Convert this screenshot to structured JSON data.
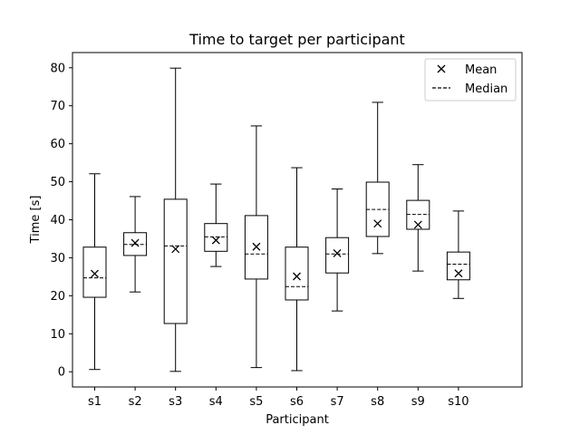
{
  "chart_data": {
    "type": "box",
    "title": "Time to target per participant",
    "xlabel": "Participant",
    "ylabel": "Time [s]",
    "ylim": [
      -4,
      84
    ],
    "yticks": [
      0,
      10,
      20,
      30,
      40,
      50,
      60,
      70,
      80
    ],
    "grid": false,
    "legend": {
      "placement": "top-right",
      "entries": [
        {
          "marker": "x",
          "label": "Mean"
        },
        {
          "marker": "dashed-line",
          "label": "Median"
        }
      ]
    },
    "categories": [
      "s1",
      "s2",
      "s3",
      "s4",
      "s5",
      "s6",
      "s7",
      "s8",
      "s9",
      "s10"
    ],
    "boxes": [
      {
        "category": "s1",
        "whisker_low": 0.6,
        "q1": 19.6,
        "median": 24.7,
        "q3": 32.8,
        "whisker_high": 52.1,
        "mean": 25.8
      },
      {
        "category": "s2",
        "whisker_low": 21.0,
        "q1": 30.6,
        "median": 33.5,
        "q3": 36.6,
        "whisker_high": 46.1,
        "mean": 33.9
      },
      {
        "category": "s3",
        "whisker_low": 0.1,
        "q1": 12.7,
        "median": 33.1,
        "q3": 45.4,
        "whisker_high": 79.9,
        "mean": 32.3
      },
      {
        "category": "s4",
        "whisker_low": 27.7,
        "q1": 31.7,
        "median": 35.5,
        "q3": 39.0,
        "whisker_high": 49.4,
        "mean": 34.6
      },
      {
        "category": "s5",
        "whisker_low": 1.1,
        "q1": 24.4,
        "median": 31.0,
        "q3": 41.1,
        "whisker_high": 64.7,
        "mean": 32.9
      },
      {
        "category": "s6",
        "whisker_low": 0.3,
        "q1": 18.9,
        "median": 22.4,
        "q3": 32.8,
        "whisker_high": 53.7,
        "mean": 25.1
      },
      {
        "category": "s7",
        "whisker_low": 16.0,
        "q1": 26.0,
        "median": 31.0,
        "q3": 35.3,
        "whisker_high": 48.1,
        "mean": 31.2
      },
      {
        "category": "s8",
        "whisker_low": 31.1,
        "q1": 35.6,
        "median": 42.7,
        "q3": 49.9,
        "whisker_high": 70.9,
        "mean": 39.0
      },
      {
        "category": "s9",
        "whisker_low": 26.5,
        "q1": 37.5,
        "median": 41.4,
        "q3": 45.1,
        "whisker_high": 54.5,
        "mean": 38.7
      },
      {
        "category": "s10",
        "whisker_low": 19.3,
        "q1": 24.2,
        "median": 28.3,
        "q3": 31.5,
        "whisker_high": 42.3,
        "mean": 25.9
      }
    ]
  }
}
